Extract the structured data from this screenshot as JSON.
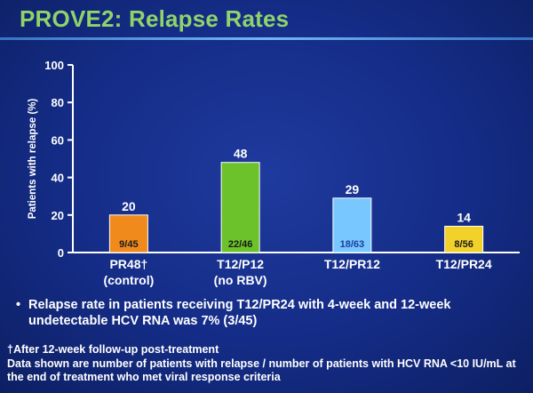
{
  "title": "PROVE2: Relapse Rates",
  "chart_data": {
    "type": "bar",
    "ylabel": "Patients with relapse (%)",
    "ylim": [
      0,
      100
    ],
    "yticks": [
      "0",
      "20",
      "40",
      "60",
      "80",
      "100"
    ],
    "grid": false,
    "categories": [
      {
        "line1": "PR48†",
        "line2": "(control)"
      },
      {
        "line1": "T12/P12",
        "line2": "(no RBV)"
      },
      {
        "line1": "T12/PR12",
        "line2": ""
      },
      {
        "line1": "T12/PR24",
        "line2": ""
      }
    ],
    "values": [
      20,
      48,
      29,
      14
    ],
    "value_labels": [
      "20",
      "48",
      "29",
      "14"
    ],
    "bar_labels": [
      "9/45",
      "22/46",
      "18/63",
      "8/56"
    ],
    "colors": [
      "#f08a1c",
      "#6cc22a",
      "#79c7ff",
      "#f2d22a"
    ],
    "bar_label_colors": [
      "#1a1a1a",
      "#1a1a1a",
      "#1a3fa0",
      "#1a1a1a"
    ]
  },
  "bullet": {
    "marker": "•",
    "text": "Relapse rate in patients receiving T12/PR24 with 4-week and 12-week undetectable HCV RNA was 7% (3/45)"
  },
  "footnotes": {
    "line1": "†After 12-week follow-up post-treatment",
    "line2": "Data shown are number of patients with relapse / number of patients with HCV RNA <10 IU/mL at the end of treatment who met viral response criteria"
  }
}
